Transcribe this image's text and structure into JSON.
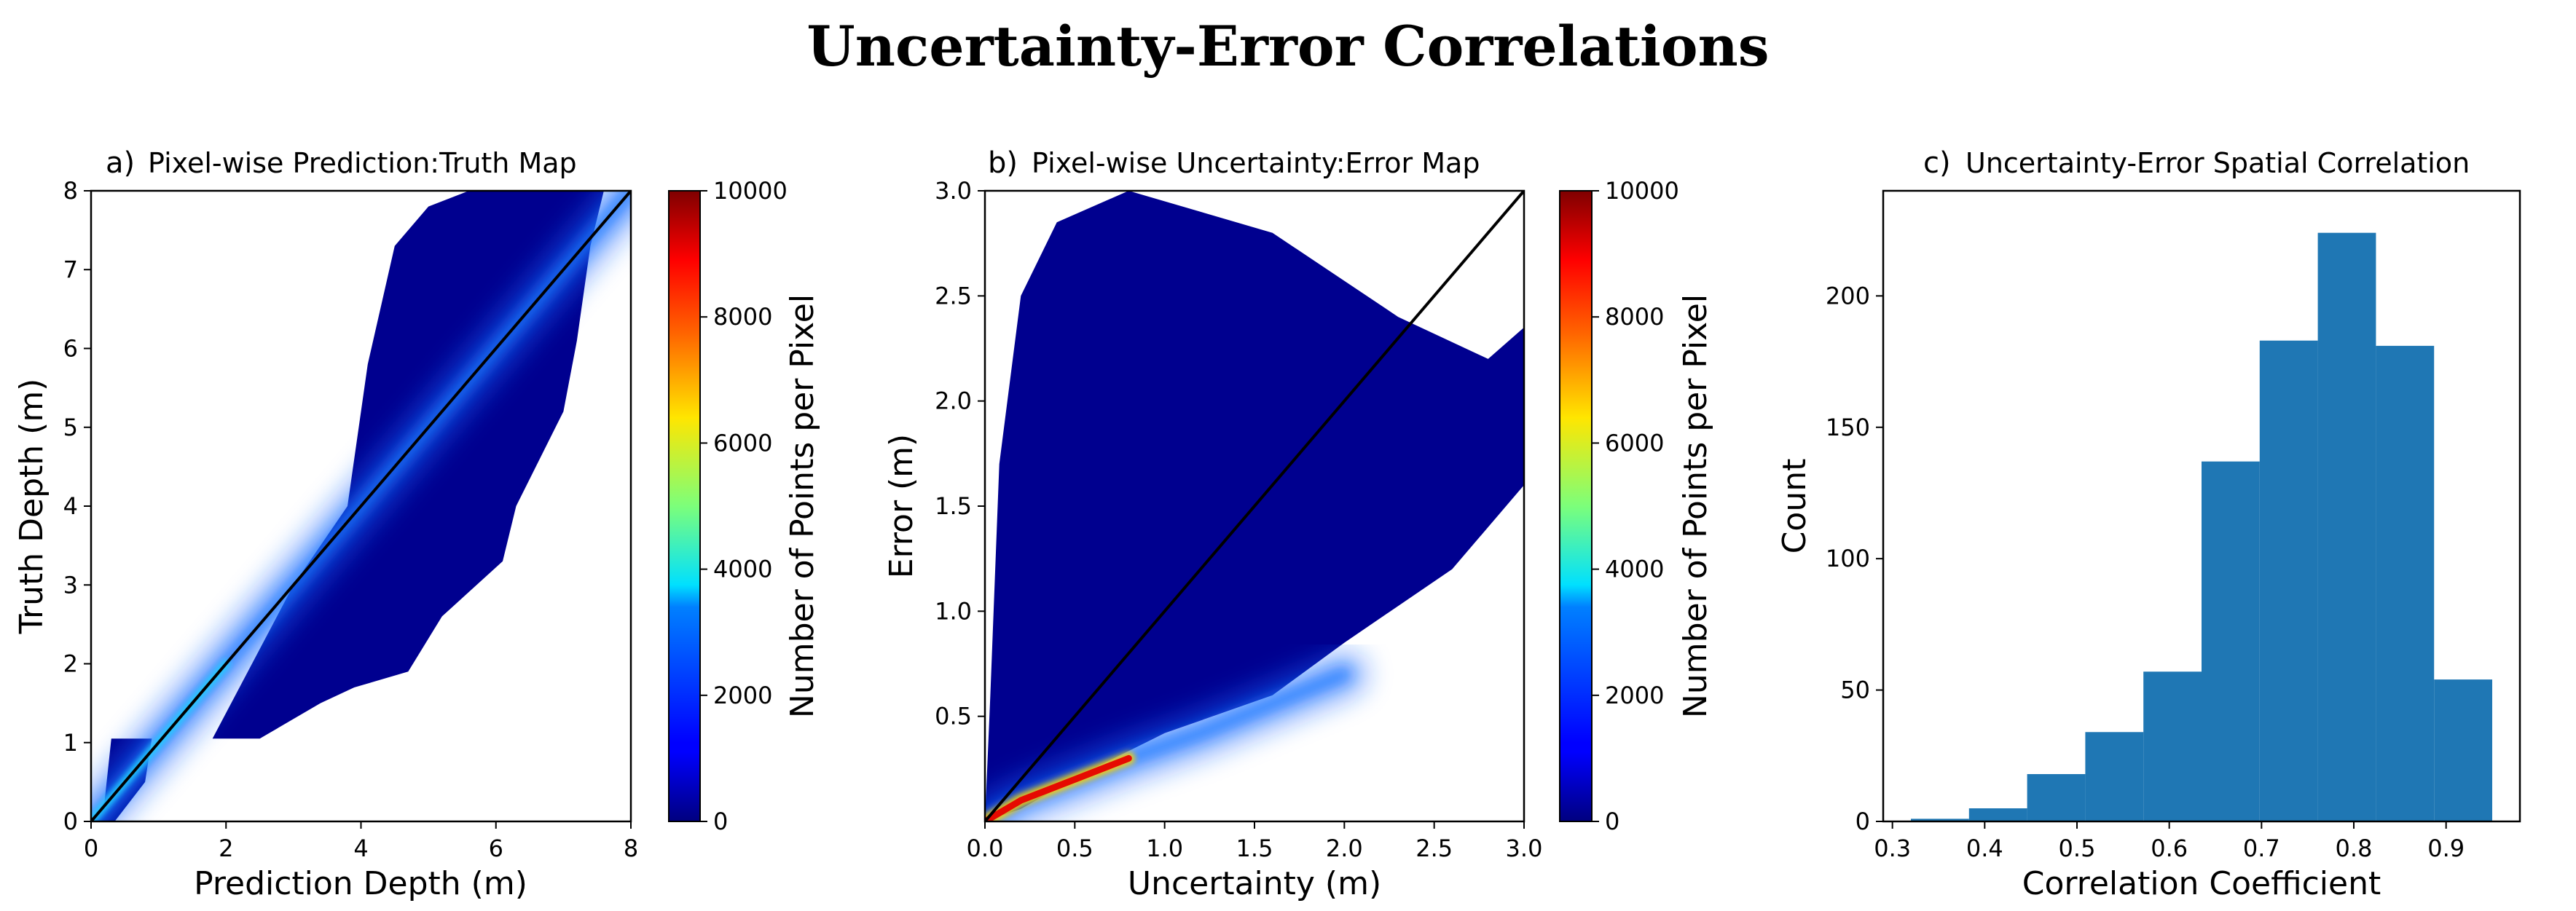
{
  "figure": {
    "title": "Uncertainty-Error Correlations"
  },
  "colors": {
    "histogram_bar": "#1f77b4",
    "identity_line": "#000000",
    "density_low": "#00008f",
    "density_high": "#800000"
  },
  "chart_data": [
    {
      "type": "heatmap",
      "panel_label": "a)",
      "title": "Pixel-wise Prediction:Truth Map",
      "xlabel": "Prediction Depth (m)",
      "ylabel": "Truth Depth (m)",
      "xlim": [
        0,
        8
      ],
      "ylim": [
        0,
        8
      ],
      "xticks": [
        0,
        2,
        4,
        6,
        8
      ],
      "yticks": [
        0,
        1,
        2,
        3,
        4,
        5,
        6,
        7,
        8
      ],
      "reference_line": {
        "x": [
          0,
          8
        ],
        "y": [
          0,
          8
        ]
      },
      "point_cloud_envelope": [
        [
          0,
          0
        ],
        [
          0.2,
          0.25
        ],
        [
          0.3,
          1.05
        ],
        [
          1.8,
          1.05
        ],
        [
          3.0,
          3.0
        ],
        [
          3.8,
          4.0
        ],
        [
          4.1,
          5.8
        ],
        [
          4.5,
          7.3
        ],
        [
          5.0,
          7.8
        ],
        [
          5.6,
          8.0
        ],
        [
          7.6,
          8.0
        ],
        [
          7.4,
          7.3
        ],
        [
          7.2,
          6.1
        ],
        [
          7.0,
          5.2
        ],
        [
          6.3,
          4.0
        ],
        [
          6.1,
          3.3
        ],
        [
          5.2,
          2.6
        ],
        [
          4.7,
          1.9
        ],
        [
          3.9,
          1.7
        ],
        [
          3.4,
          1.5
        ],
        [
          2.5,
          1.05
        ],
        [
          0.9,
          1.05
        ],
        [
          0.8,
          0.5
        ],
        [
          0.35,
          0
        ]
      ],
      "density_ridge": [
        [
          0,
          0
        ],
        [
          1,
          1
        ],
        [
          2,
          2
        ],
        [
          4,
          4
        ],
        [
          6,
          6
        ],
        [
          8,
          8
        ]
      ],
      "colorbar": {
        "label": "Number of Points per Pixel",
        "range": [
          0,
          10000
        ],
        "ticks": [
          0,
          2000,
          4000,
          6000,
          8000,
          10000
        ]
      }
    },
    {
      "type": "heatmap",
      "panel_label": "b)",
      "title": "Pixel-wise Uncertainty:Error Map",
      "xlabel": "Uncertainty (m)",
      "ylabel": "Error (m)",
      "xlim": [
        0,
        3.0
      ],
      "ylim": [
        0,
        3.0
      ],
      "xticks": [
        0.0,
        0.5,
        1.0,
        1.5,
        2.0,
        2.5,
        3.0
      ],
      "yticks": [
        0.5,
        1.0,
        1.5,
        2.0,
        2.5,
        3.0
      ],
      "reference_line": {
        "x": [
          0,
          3.0
        ],
        "y": [
          0,
          3.0
        ]
      },
      "point_cloud_envelope": [
        [
          0,
          0
        ],
        [
          0.03,
          0.6
        ],
        [
          0.08,
          1.7
        ],
        [
          0.2,
          2.5
        ],
        [
          0.4,
          2.85
        ],
        [
          0.8,
          3.0
        ],
        [
          1.6,
          2.8
        ],
        [
          2.3,
          2.4
        ],
        [
          2.8,
          2.2
        ],
        [
          3.0,
          2.35
        ],
        [
          3.0,
          1.6
        ],
        [
          2.6,
          1.2
        ],
        [
          2.0,
          0.85
        ],
        [
          1.6,
          0.6
        ],
        [
          1.0,
          0.42
        ],
        [
          0.6,
          0.25
        ],
        [
          0.2,
          0.06
        ]
      ],
      "density_ridge": [
        [
          0,
          0
        ],
        [
          0.2,
          0.1
        ],
        [
          0.5,
          0.2
        ],
        [
          0.8,
          0.3
        ],
        [
          1.2,
          0.42
        ],
        [
          2.0,
          0.7
        ]
      ],
      "colorbar": {
        "label": "Number of Points per Pixel",
        "range": [
          0,
          10000
        ],
        "ticks": [
          0,
          2000,
          4000,
          6000,
          8000,
          10000
        ]
      }
    },
    {
      "type": "bar",
      "panel_label": "c)",
      "title": "Uncertainty-Error Spatial Correlation",
      "xlabel": "Correlation Coefficient",
      "ylabel": "Count",
      "bin_edges": [
        0.32,
        0.383,
        0.446,
        0.509,
        0.572,
        0.635,
        0.698,
        0.761,
        0.824,
        0.887,
        0.95
      ],
      "values": [
        1,
        5,
        18,
        34,
        57,
        137,
        183,
        224,
        181,
        54
      ],
      "xlim": [
        0.29,
        0.98
      ],
      "ylim": [
        0,
        240
      ],
      "xticks": [
        0.3,
        0.4,
        0.5,
        0.6,
        0.7,
        0.8,
        0.9
      ],
      "yticks": [
        0,
        50,
        100,
        150,
        200
      ]
    }
  ]
}
